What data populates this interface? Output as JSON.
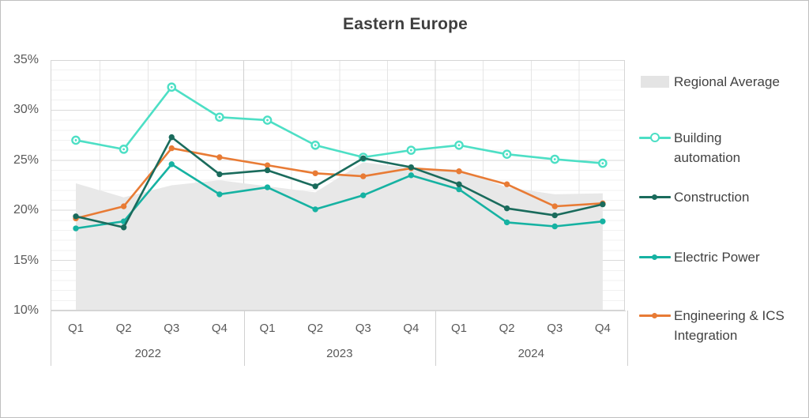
{
  "title": "Eastern Europe",
  "colors": {
    "area_fill": "#e8e8e8",
    "legend_area_swatch": "#e4e4e4",
    "building_automation": "#4ddfc5",
    "construction": "#1a6b5c",
    "electric_power": "#16b2a2",
    "engineering_ics": "#e87b35",
    "grid_minor": "#f1f1f1",
    "grid_major": "#dadada",
    "grid_vertical": "#e5e5e5",
    "grid_year": "#d0d0d0",
    "plot_border": "#d5d5d5",
    "axis_text": "#595959",
    "title_text": "#3f3f3f",
    "legend_text": "#424242"
  },
  "chart_data": {
    "type": "line",
    "title": "Eastern Europe",
    "x_quarters": [
      "Q1",
      "Q2",
      "Q3",
      "Q4",
      "Q1",
      "Q2",
      "Q3",
      "Q4",
      "Q1",
      "Q2",
      "Q3",
      "Q4"
    ],
    "year_groups": [
      "2022",
      "2023",
      "2024"
    ],
    "ylim": [
      10,
      35
    ],
    "y_ticks": [
      {
        "value": 35,
        "label": "35%"
      },
      {
        "value": 30,
        "label": "30%"
      },
      {
        "value": 25,
        "label": "25%"
      },
      {
        "value": 20,
        "label": "20%"
      },
      {
        "value": 15,
        "label": "15%"
      },
      {
        "value": 10,
        "label": "10%"
      }
    ],
    "grid": true,
    "legend_position": "right",
    "series": [
      {
        "name": "Regional Average",
        "type": "area",
        "color_key": "area_fill",
        "values": [
          22.7,
          21.3,
          22.5,
          23.0,
          22.4,
          21.8,
          24.8,
          24.2,
          24.1,
          22.3,
          21.6,
          21.7
        ]
      },
      {
        "name": "Building automation",
        "type": "line",
        "marker": "ring",
        "color_key": "building_automation",
        "values": [
          27.0,
          26.1,
          32.3,
          29.3,
          29.0,
          26.5,
          25.3,
          26.0,
          26.5,
          25.6,
          25.1,
          24.7
        ]
      },
      {
        "name": "Construction",
        "type": "line",
        "marker": "dot",
        "color_key": "construction",
        "values": [
          19.4,
          18.3,
          27.3,
          23.6,
          24.0,
          22.4,
          25.2,
          24.3,
          22.6,
          20.2,
          19.5,
          20.6
        ]
      },
      {
        "name": "Electric Power",
        "type": "line",
        "marker": "dot",
        "color_key": "electric_power",
        "values": [
          18.2,
          18.9,
          24.6,
          21.6,
          22.3,
          20.1,
          21.5,
          23.5,
          22.1,
          18.8,
          18.4,
          18.9
        ]
      },
      {
        "name": "Engineering & ICS Integration",
        "type": "line",
        "marker": "dot",
        "color_key": "engineering_ics",
        "values": [
          19.2,
          20.4,
          26.2,
          25.3,
          24.5,
          23.7,
          23.4,
          24.2,
          23.9,
          22.6,
          20.4,
          20.7
        ]
      }
    ]
  },
  "legend": {
    "items": [
      {
        "label_lines": [
          "Regional Average"
        ],
        "swatch": "area",
        "color_key": "legend_area_swatch",
        "series_index": 0
      },
      {
        "label_lines": [
          "Building",
          "automation"
        ],
        "swatch": "line-ring",
        "color_key": "building_automation",
        "series_index": 1
      },
      {
        "label_lines": [
          "Construction"
        ],
        "swatch": "line-dot",
        "color_key": "construction",
        "series_index": 2
      },
      {
        "label_lines": [
          "Electric Power"
        ],
        "swatch": "line-dot",
        "color_key": "electric_power",
        "series_index": 3
      },
      {
        "label_lines": [
          "Engineering & ICS",
          "Integration"
        ],
        "swatch": "line-dot",
        "color_key": "engineering_ics",
        "series_index": 4
      }
    ]
  }
}
